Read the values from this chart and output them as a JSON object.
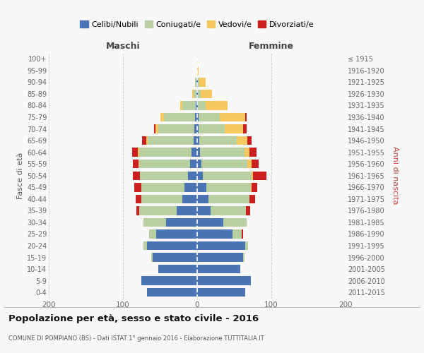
{
  "age_groups": [
    "0-4",
    "5-9",
    "10-14",
    "15-19",
    "20-24",
    "25-29",
    "30-34",
    "35-39",
    "40-44",
    "45-49",
    "50-54",
    "55-59",
    "60-64",
    "65-69",
    "70-74",
    "75-79",
    "80-84",
    "85-89",
    "90-94",
    "95-99",
    "100+"
  ],
  "birth_years": [
    "2011-2015",
    "2006-2010",
    "2001-2005",
    "1996-2000",
    "1991-1995",
    "1986-1990",
    "1981-1985",
    "1976-1980",
    "1971-1975",
    "1966-1970",
    "1961-1965",
    "1956-1960",
    "1951-1955",
    "1946-1950",
    "1941-1945",
    "1936-1940",
    "1931-1935",
    "1926-1930",
    "1921-1925",
    "1916-1920",
    "≤ 1915"
  ],
  "colors": {
    "celibi": "#4a74b4",
    "coniugati": "#b8cfa0",
    "vedovi": "#f5c860",
    "divorziati": "#cc2020"
  },
  "males": {
    "celibi": [
      68,
      75,
      52,
      60,
      68,
      55,
      42,
      28,
      20,
      17,
      12,
      10,
      8,
      5,
      4,
      3,
      2,
      1,
      1,
      0,
      0
    ],
    "coniugati": [
      0,
      0,
      0,
      2,
      4,
      10,
      30,
      50,
      55,
      58,
      65,
      68,
      70,
      62,
      48,
      42,
      18,
      4,
      2,
      0,
      0
    ],
    "vedovi": [
      0,
      0,
      0,
      0,
      0,
      0,
      0,
      0,
      0,
      0,
      0,
      1,
      2,
      2,
      4,
      5,
      3,
      2,
      0,
      0,
      0
    ],
    "divorziati": [
      0,
      0,
      0,
      0,
      0,
      0,
      0,
      4,
      8,
      10,
      10,
      8,
      8,
      5,
      2,
      0,
      0,
      0,
      0,
      0,
      0
    ]
  },
  "females": {
    "nubili": [
      65,
      72,
      58,
      62,
      65,
      48,
      35,
      18,
      15,
      12,
      8,
      6,
      4,
      3,
      2,
      2,
      1,
      1,
      1,
      0,
      0
    ],
    "coniugate": [
      0,
      0,
      0,
      2,
      4,
      12,
      32,
      48,
      55,
      60,
      65,
      62,
      60,
      50,
      35,
      28,
      10,
      4,
      2,
      0,
      0
    ],
    "vedove": [
      0,
      0,
      0,
      0,
      0,
      0,
      0,
      0,
      0,
      1,
      2,
      5,
      6,
      15,
      25,
      35,
      30,
      15,
      8,
      2,
      0
    ],
    "divorziate": [
      0,
      0,
      0,
      0,
      0,
      2,
      0,
      5,
      8,
      8,
      18,
      10,
      10,
      5,
      5,
      2,
      0,
      0,
      0,
      0,
      0
    ]
  },
  "title": "Popolazione per età, sesso e stato civile - 2016",
  "subtitle": "COMUNE DI POMPIANO (BS) - Dati ISTAT 1° gennaio 2016 - Elaborazione TUTTITALIA.IT",
  "label_maschi": "Maschi",
  "label_femmine": "Femmine",
  "ylabel_left": "Fasce di età",
  "ylabel_right": "Anni di nascita",
  "xlim": 200,
  "bg_color": "#f8f8f8",
  "grid_color": "#cccccc",
  "legend_labels": [
    "Celibi/Nubili",
    "Coniugati/e",
    "Vedovi/e",
    "Divorziati/e"
  ]
}
